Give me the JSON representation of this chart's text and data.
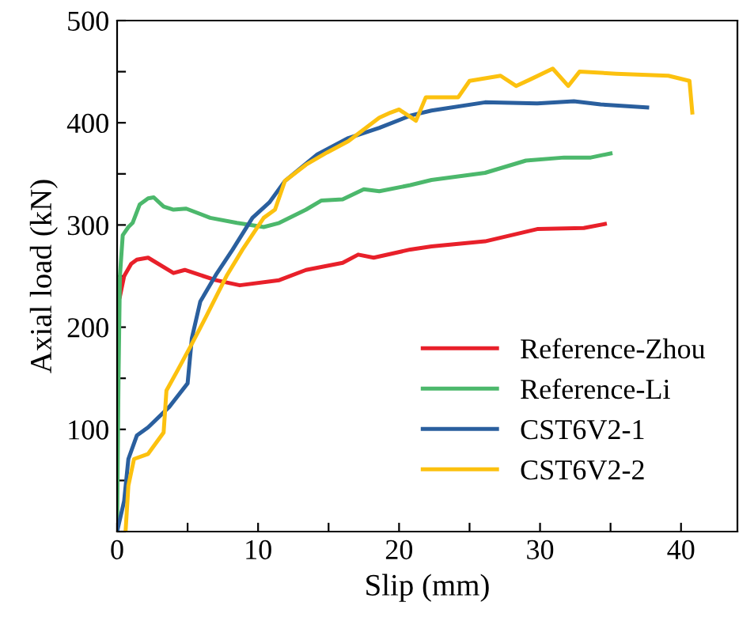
{
  "chart_data": {
    "type": "line",
    "xlabel": "Slip (mm)",
    "ylabel": "Axial load (kN)",
    "xlim": [
      0,
      44
    ],
    "ylim": [
      0,
      500
    ],
    "xticks": [
      0,
      {
        "value": 5,
        "label": null
      },
      10,
      {
        "value": 15,
        "label": null
      },
      20,
      {
        "value": 25,
        "label": null
      },
      30,
      {
        "value": 35,
        "label": null
      },
      40
    ],
    "yticks": [
      {
        "value": 0,
        "label": null
      },
      {
        "value": 50,
        "label": null
      },
      100,
      {
        "value": 150,
        "label": null
      },
      200,
      {
        "value": 250,
        "label": null
      },
      300,
      {
        "value": 350,
        "label": null
      },
      400,
      {
        "value": 450,
        "label": null
      },
      500
    ],
    "grid": false,
    "legend": "bottom right",
    "marker": "none",
    "line_style": "solid",
    "series": [
      {
        "name": "Reference-Zhou",
        "color": "#e8202a",
        "x": [
          0.2,
          0.5,
          1.0,
          1.4,
          2.2,
          4.0,
          4.8,
          7.0,
          8.7,
          11.5,
          13.4,
          16,
          17.1,
          18.2,
          20.8,
          22.3,
          26.1,
          29.8,
          33.1,
          34.6
        ],
        "values": [
          230,
          250,
          262,
          266,
          268,
          253,
          256,
          246,
          241,
          246,
          256,
          263,
          271,
          268,
          276,
          279,
          284,
          296,
          297,
          301
        ]
      },
      {
        "name": "Reference-Li",
        "color": "#4cb86c",
        "x": [
          0,
          0.1,
          0.2,
          0.4,
          0.8,
          1.1,
          1.6,
          2.2,
          2.6,
          3.3,
          4.0,
          4.9,
          6.6,
          8.5,
          10.4,
          11.5,
          13.4,
          14.5,
          16,
          17.5,
          18.6,
          20.8,
          22.3,
          26.1,
          29,
          31.7,
          33.6,
          35
        ],
        "values": [
          0,
          150,
          250,
          290,
          298,
          302,
          320,
          326,
          327,
          318,
          315,
          316,
          307,
          302,
          298,
          302,
          315,
          324,
          325,
          335,
          333,
          339,
          344,
          351,
          363,
          366,
          366,
          370
        ]
      },
      {
        "name": "CST6V2-1",
        "color": "#2a5f9e",
        "x": [
          0,
          0.5,
          0.8,
          1.4,
          2.2,
          3.7,
          5.0,
          5.3,
          5.9,
          7.0,
          8.2,
          9.6,
          10.8,
          11.9,
          14.2,
          16.4,
          18.6,
          20.8,
          22.3,
          26.1,
          29.8,
          32.4,
          34.3,
          37.6
        ],
        "values": [
          0,
          30,
          71,
          94,
          102,
          122,
          145,
          189,
          225,
          251,
          276,
          307,
          322,
          343,
          369,
          385,
          395,
          407,
          412,
          420,
          419,
          421,
          418,
          415
        ]
      },
      {
        "name": "CST6V2-2",
        "color": "#fcc10f",
        "x": [
          0.6,
          0.8,
          1.2,
          2.2,
          3.3,
          3.5,
          4.3,
          5.2,
          6.3,
          7.8,
          8.9,
          10.4,
          11.2,
          11.9,
          13.4,
          14.9,
          16.4,
          18.6,
          19.4,
          20,
          21.2,
          21.9,
          24.2,
          25,
          27.2,
          28.3,
          29.4,
          30.9,
          32,
          32.8,
          35.4,
          39.1,
          40.6,
          40.8
        ],
        "values": [
          0,
          45,
          71,
          76,
          97,
          138,
          158,
          181,
          210,
          251,
          276,
          307,
          315,
          343,
          359,
          371,
          382,
          405,
          410,
          413,
          402,
          425,
          425,
          441,
          446,
          436,
          443,
          453,
          436,
          450,
          448,
          446,
          441,
          410
        ]
      }
    ]
  }
}
